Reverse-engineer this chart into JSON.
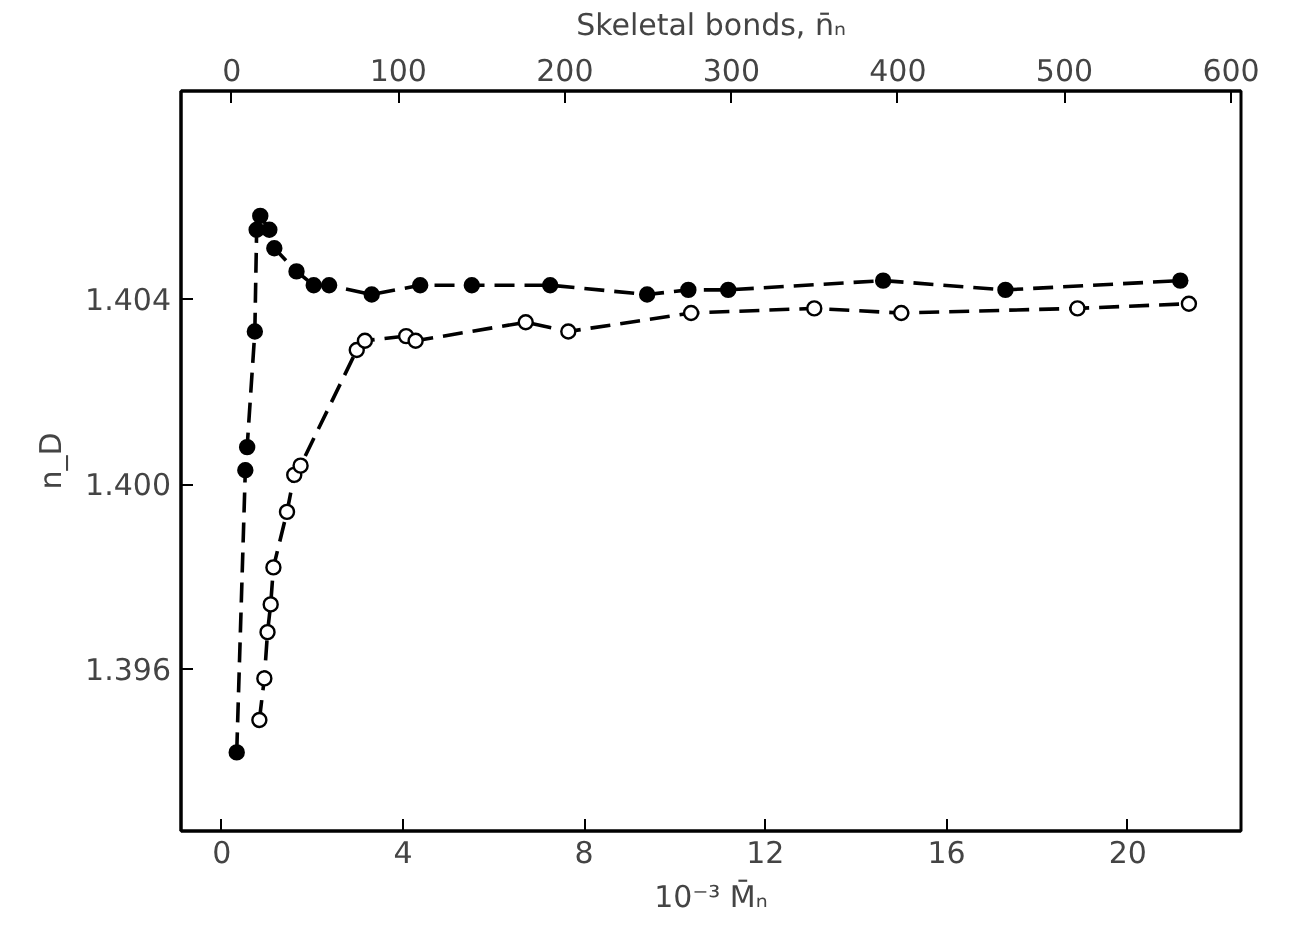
{
  "chart_data": {
    "type": "line",
    "xlabel": "10⁻³ M̄ₙ",
    "ylabel": "n_D",
    "x2label": "Skeletal bonds, n̄ₙ",
    "xlim": [
      -0.9,
      22.5
    ],
    "xticks": [
      0,
      4,
      8,
      12,
      16,
      20
    ],
    "x2lim": [
      -30.5,
      606
    ],
    "x2ticks": [
      0,
      100,
      200,
      300,
      400,
      500,
      600
    ],
    "ylim": [
      1.3925,
      1.4085
    ],
    "yticks": [
      {
        "value": 1.396,
        "label": "1.396"
      },
      {
        "value": 1.4,
        "label": "1.400"
      },
      {
        "value": 1.404,
        "label": "1.404"
      }
    ],
    "grid": false,
    "marker": "circle",
    "line_style": "dashed",
    "series": [
      {
        "color": "#000000",
        "x": [
          0.33,
          0.52,
          0.56,
          0.73,
          0.77,
          0.85,
          1.05,
          1.16,
          1.65,
          2.03,
          2.37,
          3.31,
          4.38,
          5.52,
          7.25,
          9.39,
          10.3,
          11.18,
          14.6,
          17.3,
          21.16
        ],
        "values": [
          1.3942,
          1.4003,
          1.4008,
          1.4033,
          1.4055,
          1.4058,
          1.4055,
          1.4051,
          1.4046,
          1.4043,
          1.4043,
          1.4041,
          1.4043,
          1.4043,
          1.4043,
          1.4041,
          1.4042,
          1.4042,
          1.4044,
          1.4042,
          1.4044
        ]
      },
      {
        "color": "#ffffff",
        "x": [
          0.83,
          0.94,
          1.01,
          1.08,
          1.14,
          1.44,
          1.6,
          1.74,
          2.98,
          3.16,
          4.07,
          4.28,
          6.71,
          7.65,
          10.36,
          13.08,
          15.0,
          18.89,
          21.35
        ],
        "values": [
          1.3949,
          1.3958,
          1.3968,
          1.3974,
          1.3982,
          1.3994,
          1.4002,
          1.4004,
          1.4029,
          1.4031,
          1.4032,
          1.4031,
          1.4035,
          1.4033,
          1.4037,
          1.4038,
          1.4037,
          1.4038,
          1.4039
        ]
      }
    ]
  }
}
